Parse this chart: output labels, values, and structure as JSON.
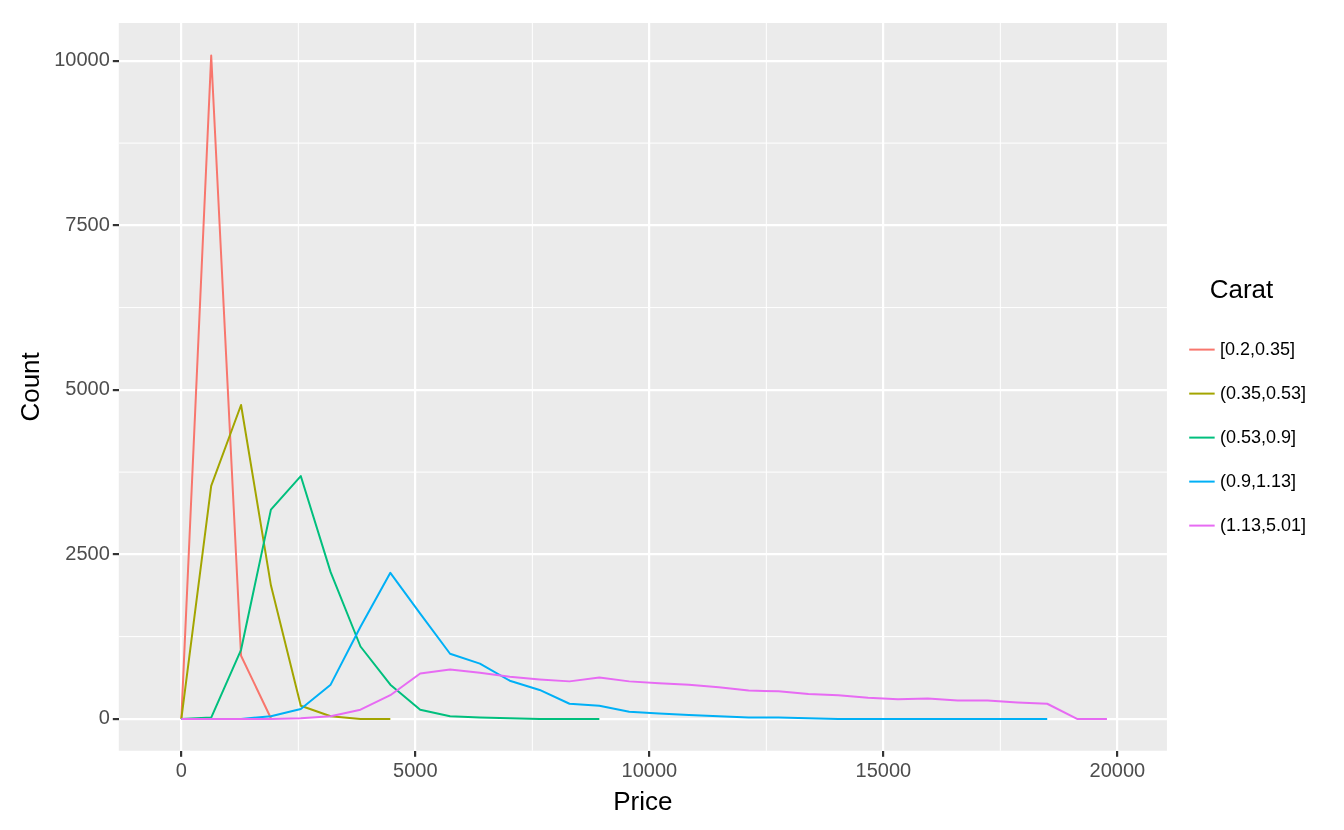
{
  "chart_data": {
    "type": "line",
    "xlabel": "Price",
    "ylabel": "Count",
    "legend_title": "Carat",
    "legend": "right",
    "grid": true,
    "marker": "none",
    "line_style": "solid",
    "xlim": [
      -1336,
      21060
    ],
    "xticks": [
      0,
      5000,
      10000,
      15000,
      20000
    ],
    "ylim": [
      -485,
      10575
    ],
    "yticks": [
      0,
      2500,
      5000,
      7500,
      10000
    ],
    "x": [
      0,
      638,
      1276,
      1914,
      2552,
      3190,
      3828,
      4466,
      5104,
      5742,
      6380,
      7018,
      7656,
      8294,
      8932,
      9570,
      10208,
      10846,
      11484,
      12122,
      12760,
      13398,
      14036,
      14674,
      15312,
      15950,
      16588,
      17226,
      17864,
      18502,
      19140,
      19778
    ],
    "series": [
      {
        "name": "[0.2,0.35]",
        "color": "#f8766d",
        "values": [
          0,
          10080,
          960,
          10,
          null,
          null,
          null,
          null,
          null,
          null,
          null,
          null,
          null,
          null,
          null,
          null,
          null,
          null,
          null,
          null,
          null,
          null,
          null,
          null,
          null,
          null,
          null,
          null,
          null,
          null,
          null,
          null
        ]
      },
      {
        "name": "(0.35,0.53]",
        "color": "#a3a500",
        "values": [
          0,
          3540,
          4770,
          2030,
          200,
          40,
          0,
          0,
          null,
          null,
          null,
          null,
          null,
          null,
          null,
          null,
          null,
          null,
          null,
          null,
          null,
          null,
          null,
          null,
          null,
          null,
          null,
          null,
          null,
          null,
          null,
          null
        ]
      },
      {
        "name": "(0.53,0.9]",
        "color": "#00bf7d",
        "values": [
          0,
          20,
          1050,
          3180,
          3690,
          2230,
          1100,
          520,
          140,
          40,
          20,
          10,
          0,
          0,
          0,
          null,
          null,
          null,
          null,
          null,
          null,
          null,
          null,
          null,
          null,
          null,
          null,
          null,
          null,
          null,
          null,
          null
        ]
      },
      {
        "name": "(0.9,1.13]",
        "color": "#00b0f6",
        "values": [
          0,
          0,
          0,
          40,
          150,
          520,
          1400,
          2220,
          1600,
          990,
          840,
          580,
          440,
          230,
          200,
          110,
          80,
          60,
          40,
          20,
          20,
          10,
          0,
          0,
          0,
          0,
          0,
          0,
          0,
          0,
          null,
          null
        ]
      },
      {
        "name": "(1.13,5.01]",
        "color": "#e76bf3",
        "values": [
          0,
          0,
          0,
          0,
          10,
          40,
          140,
          360,
          690,
          750,
          700,
          640,
          600,
          570,
          630,
          570,
          540,
          520,
          480,
          430,
          420,
          380,
          360,
          320,
          300,
          310,
          280,
          280,
          250,
          230,
          0,
          0
        ]
      }
    ]
  }
}
